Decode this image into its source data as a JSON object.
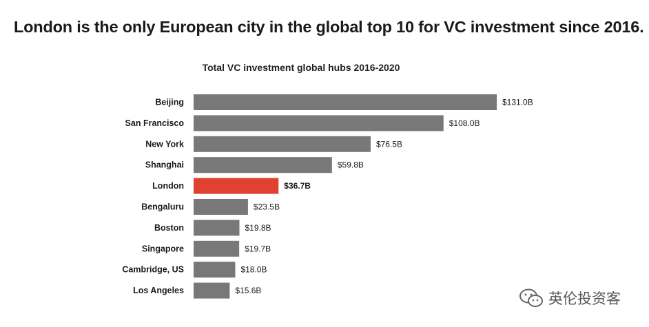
{
  "headline": "London is the only European city in the global top 10 for VC investment since 2016.",
  "watermark": {
    "text": "英伦投资客",
    "icon": "wechat-icon"
  },
  "colors": {
    "bar": "#787878",
    "highlight": "#e0422f",
    "text": "#1a1a1a"
  },
  "chart_data": {
    "type": "bar",
    "orientation": "horizontal",
    "title": "Total VC investment global hubs 2016-2020",
    "xlabel": "",
    "ylabel": "",
    "unit": "$B",
    "categories": [
      "Beijing",
      "San Francisco",
      "New York",
      "Shanghai",
      "London",
      "Bengaluru",
      "Boston",
      "Singapore",
      "Cambridge, US",
      "Los Angeles"
    ],
    "values": [
      131.0,
      108.0,
      76.5,
      59.8,
      36.7,
      23.5,
      19.8,
      19.7,
      18.0,
      15.6
    ],
    "value_labels": [
      "$131.0B",
      "$108.0B",
      "$76.5B",
      "$59.8B",
      "$36.7B",
      "$23.5B",
      "$19.8B",
      "$19.7B",
      "$18.0B",
      "$15.6B"
    ],
    "highlight": "London",
    "grid": false,
    "legend": "none"
  }
}
